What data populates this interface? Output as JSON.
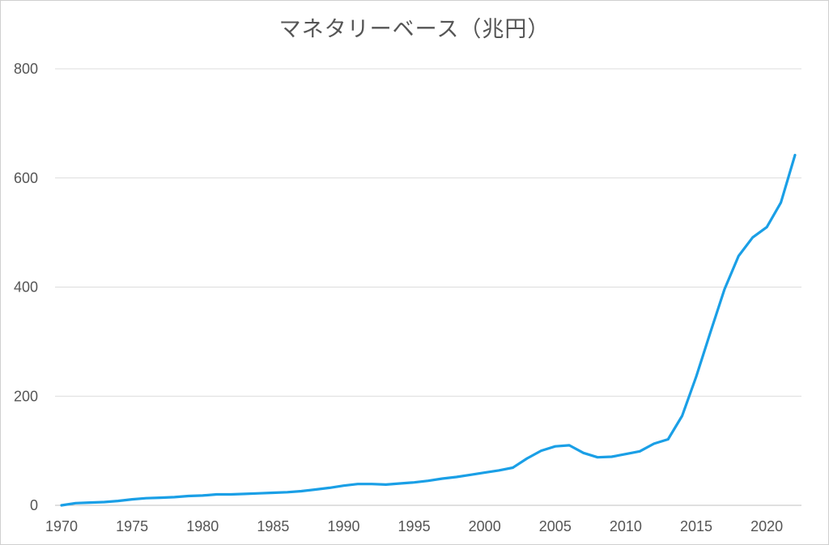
{
  "chart_data": {
    "type": "line",
    "title": "マネタリーベース（兆円）",
    "xlabel": "",
    "ylabel": "",
    "xlim": [
      1970,
      2022
    ],
    "ylim": [
      0,
      800
    ],
    "grid": true,
    "y_ticks": [
      "0",
      "200",
      "400",
      "600",
      "800"
    ],
    "x_ticks": [
      "1970",
      "1975",
      "1980",
      "1985",
      "1990",
      "1995",
      "2000",
      "2005",
      "2010",
      "2015",
      "2020"
    ],
    "line_color": "#1a9fe6",
    "series": [
      {
        "x": [
          1970,
          1971,
          1972,
          1973,
          1974,
          1975,
          1976,
          1977,
          1978,
          1979,
          1980,
          1981,
          1982,
          1983,
          1984,
          1985,
          1986,
          1987,
          1988,
          1989,
          1990,
          1991,
          1992,
          1993,
          1994,
          1995,
          1996,
          1997,
          1998,
          1999,
          2000,
          2001,
          2002,
          2003,
          2004,
          2005,
          2006,
          2007,
          2008,
          2009,
          2010,
          2011,
          2012,
          2013,
          2014,
          2015,
          2016,
          2017,
          2018,
          2019,
          2020,
          2021,
          2022
        ],
        "values": [
          0,
          4,
          5,
          6,
          8,
          11,
          13,
          14,
          15,
          17,
          18,
          20,
          20,
          21,
          22,
          23,
          24,
          26,
          29,
          32,
          36,
          39,
          39,
          38,
          40,
          42,
          45,
          49,
          52,
          56,
          60,
          64,
          69,
          86,
          100,
          108,
          110,
          96,
          88,
          89,
          94,
          99,
          113,
          121,
          164,
          236,
          317,
          396,
          457,
          491,
          510,
          555,
          642
        ]
      }
    ]
  }
}
